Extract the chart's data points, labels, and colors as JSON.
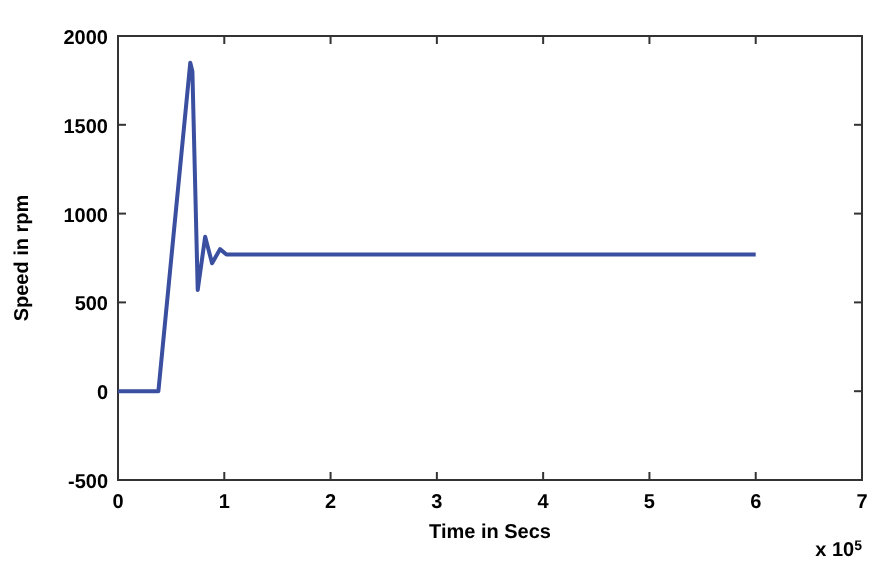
{
  "chart_data": {
    "type": "line",
    "xlabel": "Time in Secs",
    "ylabel": "Speed in rpm",
    "annotations": [
      "x 10$^{5}$"
    ],
    "series": [
      {
        "color": "#3a4fa0",
        "x": [
          0,
          0.38,
          0.68,
          0.7,
          0.75,
          0.82,
          0.885,
          0.96,
          1.02,
          1.5,
          2,
          3,
          4,
          5,
          6
        ],
        "values": [
          0,
          0,
          1850,
          1800,
          570,
          870,
          720,
          800,
          770,
          770,
          770,
          770,
          770,
          770,
          770
        ]
      }
    ],
    "xlim": [
      0,
      7
    ],
    "xticks": [
      0,
      1,
      2,
      3,
      4,
      5,
      6,
      7
    ],
    "ylim": [
      -500,
      2000
    ],
    "yticks": [
      -500,
      0,
      500,
      1000,
      1500,
      2000
    ],
    "grid": false,
    "marker": "none",
    "line_style": "solid"
  }
}
